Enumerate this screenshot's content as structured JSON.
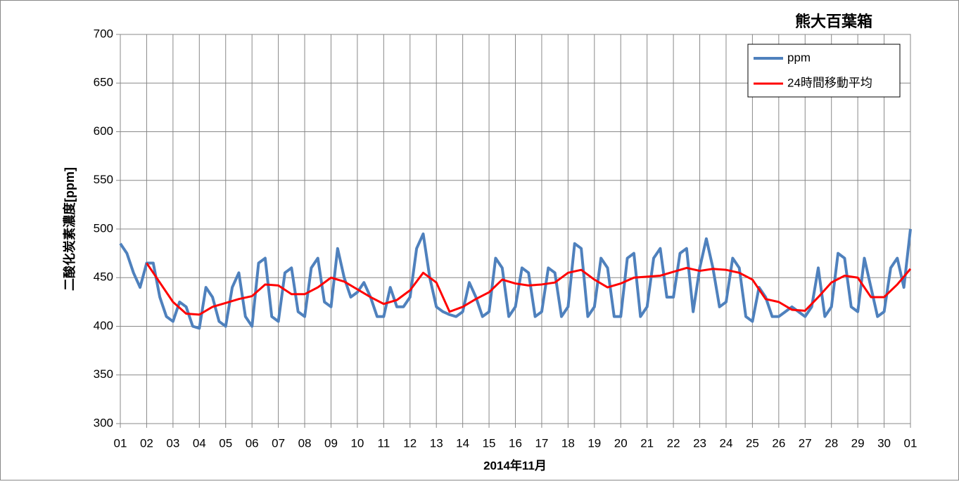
{
  "chart_data": {
    "type": "line",
    "title": "熊大百葉箱",
    "xlabel": "2014年11月",
    "ylabel": "二酸化炭素濃度[ppm]",
    "xlim": [
      0,
      30
    ],
    "ylim": [
      300,
      700
    ],
    "yticks": [
      300,
      350,
      400,
      450,
      500,
      550,
      600,
      650,
      700
    ],
    "xticks": [
      {
        "value": 0,
        "label": "01"
      },
      {
        "value": 1,
        "label": "02"
      },
      {
        "value": 2,
        "label": "03"
      },
      {
        "value": 3,
        "label": "04"
      },
      {
        "value": 4,
        "label": "05"
      },
      {
        "value": 5,
        "label": "06"
      },
      {
        "value": 6,
        "label": "07"
      },
      {
        "value": 7,
        "label": "08"
      },
      {
        "value": 8,
        "label": "09"
      },
      {
        "value": 9,
        "label": "10"
      },
      {
        "value": 10,
        "label": "11"
      },
      {
        "value": 11,
        "label": "12"
      },
      {
        "value": 12,
        "label": "13"
      },
      {
        "value": 13,
        "label": "14"
      },
      {
        "value": 14,
        "label": "15"
      },
      {
        "value": 15,
        "label": "16"
      },
      {
        "value": 16,
        "label": "17"
      },
      {
        "value": 17,
        "label": "18"
      },
      {
        "value": 18,
        "label": "19"
      },
      {
        "value": 19,
        "label": "20"
      },
      {
        "value": 20,
        "label": "21"
      },
      {
        "value": 21,
        "label": "22"
      },
      {
        "value": 22,
        "label": "23"
      },
      {
        "value": 23,
        "label": "24"
      },
      {
        "value": 24,
        "label": "25"
      },
      {
        "value": 25,
        "label": "26"
      },
      {
        "value": 26,
        "label": "27"
      },
      {
        "value": 27,
        "label": "28"
      },
      {
        "value": 28,
        "label": "29"
      },
      {
        "value": 29,
        "label": "30"
      },
      {
        "value": 30,
        "label": "01"
      }
    ],
    "grid": true,
    "legend": "top-right",
    "series": [
      {
        "name": "ppm",
        "color": "#4f81bd",
        "width": 4,
        "x": [
          0,
          0.25,
          0.5,
          0.75,
          1,
          1.25,
          1.5,
          1.75,
          2,
          2.25,
          2.5,
          2.75,
          3,
          3.25,
          3.5,
          3.75,
          4,
          4.25,
          4.5,
          4.75,
          5,
          5.25,
          5.5,
          5.75,
          6,
          6.25,
          6.5,
          6.75,
          7,
          7.25,
          7.5,
          7.75,
          8,
          8.25,
          8.5,
          8.75,
          9,
          9.25,
          9.5,
          9.75,
          10,
          10.25,
          10.5,
          10.75,
          11,
          11.25,
          11.5,
          11.75,
          12,
          12.25,
          12.5,
          12.75,
          13,
          13.25,
          13.5,
          13.75,
          14,
          14.25,
          14.5,
          14.75,
          15,
          15.25,
          15.5,
          15.75,
          16,
          16.25,
          16.5,
          16.75,
          17,
          17.25,
          17.5,
          17.75,
          18,
          18.25,
          18.5,
          18.75,
          19,
          19.25,
          19.5,
          19.75,
          20,
          20.25,
          20.5,
          20.75,
          21,
          21.25,
          21.5,
          21.75,
          22,
          22.25,
          22.5,
          22.75,
          23,
          23.25,
          23.5,
          23.75,
          24,
          24.25,
          24.5,
          24.75,
          25,
          25.25,
          25.5,
          25.75,
          26,
          26.25,
          26.5,
          26.75,
          27,
          27.25,
          27.5,
          27.75,
          28,
          28.25,
          28.5,
          28.75,
          29,
          29.25,
          29.5,
          29.75,
          30
        ],
        "values": [
          485,
          475,
          455,
          440,
          465,
          465,
          430,
          410,
          405,
          425,
          420,
          400,
          398,
          440,
          430,
          405,
          400,
          440,
          455,
          410,
          400,
          465,
          470,
          410,
          405,
          455,
          460,
          415,
          410,
          460,
          470,
          425,
          420,
          480,
          450,
          430,
          435,
          445,
          430,
          410,
          410,
          440,
          420,
          420,
          430,
          480,
          495,
          450,
          420,
          415,
          412,
          410,
          415,
          445,
          430,
          410,
          415,
          470,
          460,
          410,
          420,
          460,
          455,
          410,
          415,
          460,
          455,
          410,
          420,
          485,
          480,
          410,
          420,
          470,
          460,
          410,
          410,
          470,
          475,
          410,
          420,
          470,
          480,
          430,
          430,
          475,
          480,
          415,
          460,
          490,
          460,
          420,
          425,
          470,
          460,
          410,
          405,
          440,
          430,
          410,
          410,
          415,
          420,
          415,
          410,
          420,
          460,
          410,
          420,
          475,
          470,
          420,
          415,
          470,
          440,
          410,
          415,
          460,
          470,
          440,
          500
        ]
      },
      {
        "name": "24時間移動平均",
        "color": "#ff0000",
        "width": 3,
        "x": [
          1,
          1.5,
          2,
          2.5,
          3,
          3.5,
          4,
          4.5,
          5,
          5.5,
          6,
          6.5,
          7,
          7.5,
          8,
          8.5,
          9,
          9.5,
          10,
          10.5,
          11,
          11.5,
          12,
          12.5,
          13,
          13.5,
          14,
          14.5,
          15,
          15.5,
          16,
          16.5,
          17,
          17.5,
          18,
          18.5,
          19,
          19.5,
          20,
          20.5,
          21,
          21.5,
          22,
          22.5,
          23,
          23.5,
          24,
          24.5,
          25,
          25.5,
          26,
          26.5,
          27,
          27.5,
          28,
          28.5,
          29,
          29.5,
          30
        ],
        "values": [
          465,
          445,
          425,
          413,
          412,
          420,
          424,
          428,
          431,
          443,
          442,
          433,
          433,
          440,
          450,
          446,
          438,
          430,
          423,
          427,
          437,
          455,
          445,
          415,
          420,
          428,
          435,
          448,
          444,
          442,
          443,
          445,
          455,
          458,
          448,
          440,
          444,
          450,
          451,
          452,
          456,
          460,
          457,
          459,
          458,
          455,
          448,
          428,
          425,
          417,
          416,
          430,
          445,
          452,
          450,
          430,
          430,
          443,
          459
        ]
      }
    ]
  }
}
